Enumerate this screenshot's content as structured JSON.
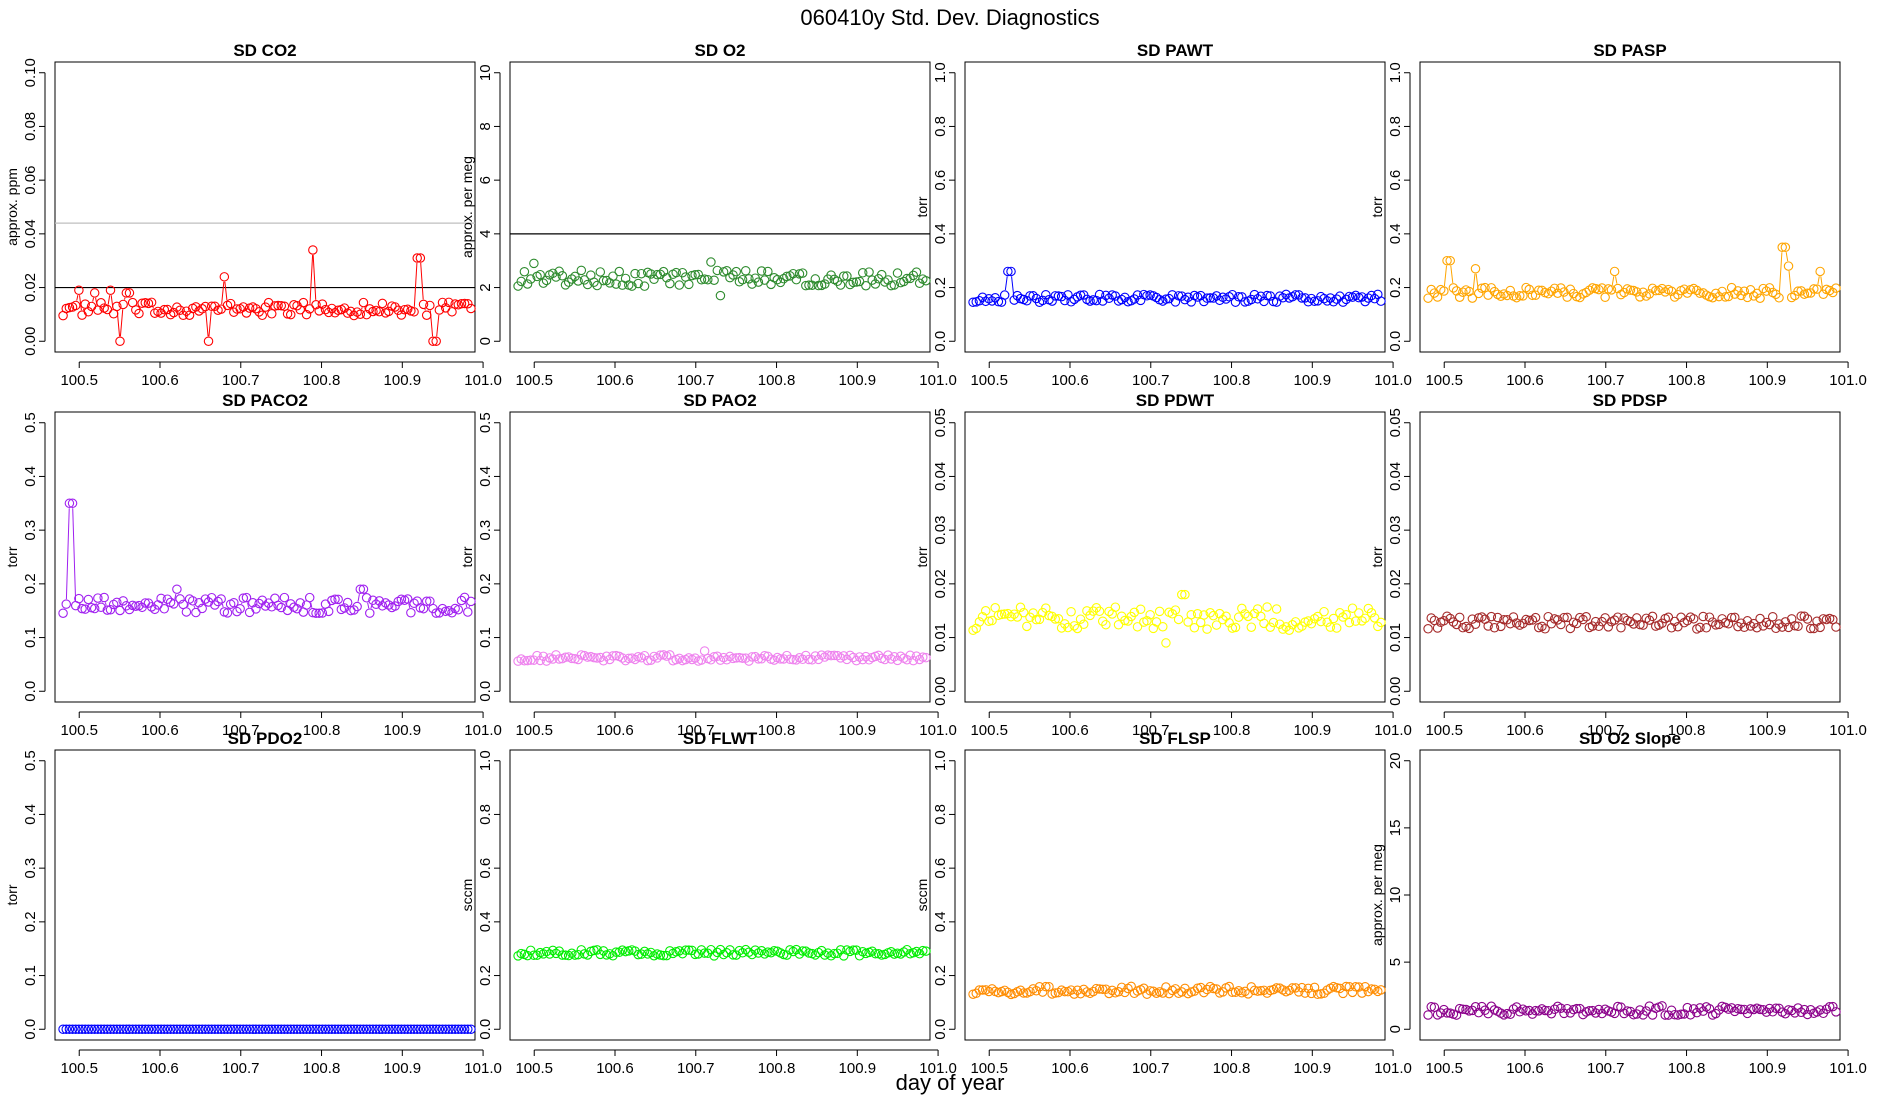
{
  "title": "060410y   Std. Dev. Diagnostics",
  "xlabel": "day of year",
  "chart_data": [
    {
      "type": "scatter",
      "title": "SD CO2",
      "ylabel": "approx. ppm",
      "color": "#ff0000",
      "ylim": [
        0,
        0.1
      ],
      "yticks": [
        "0.00",
        "0.02",
        "0.04",
        "0.06",
        "0.08",
        "0.10"
      ],
      "xlim": [
        100.47,
        100.99
      ],
      "xticks": [
        "100.5",
        "100.6",
        "100.7",
        "100.8",
        "100.9",
        "101.0"
      ],
      "hlines": [
        {
          "y": 0.02,
          "color": "#000000"
        },
        {
          "y": 0.044,
          "color": "#bfbfbf"
        }
      ],
      "base": 0.012,
      "noise": 0.0025,
      "spikes": [
        [
          100.5,
          0.019
        ],
        [
          100.52,
          0.018
        ],
        [
          100.54,
          0.019
        ],
        [
          100.55,
          0.0
        ],
        [
          100.56,
          0.018
        ],
        [
          100.66,
          0.0
        ],
        [
          100.68,
          0.024
        ],
        [
          100.79,
          0.034
        ],
        [
          100.92,
          0.031
        ],
        [
          100.94,
          0.0
        ]
      ],
      "connected": true
    },
    {
      "type": "scatter",
      "title": "SD O2",
      "ylabel": "approx. per meg",
      "color": "#2e8b2e",
      "ylim": [
        0,
        10
      ],
      "yticks": [
        "0",
        "2",
        "4",
        "6",
        "8",
        "10"
      ],
      "xlim": [
        100.47,
        100.99
      ],
      "xticks": [
        "100.5",
        "100.6",
        "100.7",
        "100.8",
        "100.9",
        "101.0"
      ],
      "hlines": [
        {
          "y": 4,
          "color": "#000000"
        }
      ],
      "base": 2.35,
      "noise": 0.3,
      "spikes": [
        [
          100.5,
          2.9
        ],
        [
          100.72,
          2.95
        ],
        [
          100.73,
          1.7
        ]
      ],
      "connected": false
    },
    {
      "type": "scatter",
      "title": "SD PAWT",
      "ylabel": "torr",
      "color": "#0000ff",
      "ylim": [
        0,
        1.0
      ],
      "yticks": [
        "0.0",
        "0.2",
        "0.4",
        "0.6",
        "0.8",
        "1.0"
      ],
      "xlim": [
        100.47,
        100.99
      ],
      "xticks": [
        "100.5",
        "100.6",
        "100.7",
        "100.8",
        "100.9",
        "101.0"
      ],
      "hlines": [],
      "base": 0.16,
      "noise": 0.015,
      "spikes": [
        [
          100.525,
          0.26
        ]
      ],
      "connected": true
    },
    {
      "type": "scatter",
      "title": "SD PASP",
      "ylabel": "torr",
      "color": "#ffa500",
      "ylim": [
        0,
        1.0
      ],
      "yticks": [
        "0.0",
        "0.2",
        "0.4",
        "0.6",
        "0.8",
        "1.0"
      ],
      "xlim": [
        100.47,
        100.99
      ],
      "xticks": [
        "100.5",
        "100.6",
        "100.7",
        "100.8",
        "100.9",
        "101.0"
      ],
      "hlines": [],
      "base": 0.18,
      "noise": 0.02,
      "spikes": [
        [
          100.505,
          0.3
        ],
        [
          100.54,
          0.27
        ],
        [
          100.71,
          0.26
        ],
        [
          100.92,
          0.35
        ],
        [
          100.925,
          0.28
        ],
        [
          100.965,
          0.26
        ]
      ],
      "connected": true
    },
    {
      "type": "scatter",
      "title": "SD PACO2",
      "ylabel": "torr",
      "color": "#a020f0",
      "ylim": [
        0,
        0.5
      ],
      "yticks": [
        "0.0",
        "0.1",
        "0.2",
        "0.3",
        "0.4",
        "0.5"
      ],
      "xlim": [
        100.47,
        100.99
      ],
      "xticks": [
        "100.5",
        "100.6",
        "100.7",
        "100.8",
        "100.9",
        "101.0"
      ],
      "hlines": [],
      "base": 0.16,
      "noise": 0.015,
      "spikes": [
        [
          100.49,
          0.35
        ],
        [
          100.62,
          0.19
        ],
        [
          100.85,
          0.19
        ]
      ],
      "connected": true
    },
    {
      "type": "scatter",
      "title": "SD PAO2",
      "ylabel": "torr",
      "color": "#ee82ee",
      "ylim": [
        0,
        0.5
      ],
      "yticks": [
        "0.0",
        "0.1",
        "0.2",
        "0.3",
        "0.4",
        "0.5"
      ],
      "xlim": [
        100.47,
        100.99
      ],
      "xticks": [
        "100.5",
        "100.6",
        "100.7",
        "100.8",
        "100.9",
        "101.0"
      ],
      "hlines": [],
      "base": 0.062,
      "noise": 0.006,
      "spikes": [
        [
          100.71,
          0.075
        ]
      ],
      "connected": false
    },
    {
      "type": "scatter",
      "title": "SD PDWT",
      "ylabel": "torr",
      "color": "#ffff00",
      "ylim": [
        0,
        0.05
      ],
      "yticks": [
        "0.00",
        "0.01",
        "0.02",
        "0.03",
        "0.04",
        "0.05"
      ],
      "xlim": [
        100.47,
        100.99
      ],
      "xticks": [
        "100.5",
        "100.6",
        "100.7",
        "100.8",
        "100.9",
        "101.0"
      ],
      "hlines": [],
      "base": 0.0135,
      "noise": 0.0022,
      "spikes": [
        [
          100.74,
          0.018
        ],
        [
          100.72,
          0.009
        ]
      ],
      "connected": false
    },
    {
      "type": "scatter",
      "title": "SD PDSP",
      "ylabel": "torr",
      "color": "#a52a2a",
      "ylim": [
        0,
        0.05
      ],
      "yticks": [
        "0.00",
        "0.01",
        "0.02",
        "0.03",
        "0.04",
        "0.05"
      ],
      "xlim": [
        100.47,
        100.99
      ],
      "xticks": [
        "100.5",
        "100.6",
        "100.7",
        "100.8",
        "100.9",
        "101.0"
      ],
      "hlines": [],
      "base": 0.0128,
      "noise": 0.0012,
      "spikes": [],
      "connected": false
    },
    {
      "type": "scatter",
      "title": "SD PDO2",
      "ylabel": "torr",
      "color": "#0000ff",
      "ylim": [
        0,
        0.5
      ],
      "yticks": [
        "0.0",
        "0.1",
        "0.2",
        "0.3",
        "0.4",
        "0.5"
      ],
      "xlim": [
        100.47,
        100.99
      ],
      "xticks": [
        "100.5",
        "100.6",
        "100.7",
        "100.8",
        "100.9",
        "101.0"
      ],
      "hlines": [],
      "base": 0.0,
      "noise": 0.0,
      "spikes": [],
      "connected": false
    },
    {
      "type": "scatter",
      "title": "SD FLWT",
      "ylabel": "sccm",
      "color": "#00ee00",
      "ylim": [
        0,
        1.0
      ],
      "yticks": [
        "0.0",
        "0.2",
        "0.4",
        "0.6",
        "0.8",
        "1.0"
      ],
      "xlim": [
        100.47,
        100.99
      ],
      "xticks": [
        "100.5",
        "100.6",
        "100.7",
        "100.8",
        "100.9",
        "101.0"
      ],
      "hlines": [],
      "base": 0.285,
      "noise": 0.012,
      "spikes": [],
      "connected": false
    },
    {
      "type": "scatter",
      "title": "SD FLSP",
      "ylabel": "sccm",
      "color": "#ff8c00",
      "ylim": [
        0,
        1.0
      ],
      "yticks": [
        "0.0",
        "0.2",
        "0.4",
        "0.6",
        "0.8",
        "1.0"
      ],
      "xlim": [
        100.47,
        100.99
      ],
      "xticks": [
        "100.5",
        "100.6",
        "100.7",
        "100.8",
        "100.9",
        "101.0"
      ],
      "hlines": [],
      "base": 0.145,
      "noise": 0.015,
      "spikes": [],
      "connected": false
    },
    {
      "type": "scatter",
      "title": "SD O2 Slope",
      "ylabel": "approx. per meg",
      "color": "#8b008b",
      "ylim": [
        0,
        20
      ],
      "yticks": [
        "0",
        "5",
        "10",
        "15",
        "20"
      ],
      "xlim": [
        100.47,
        100.99
      ],
      "xticks": [
        "100.5",
        "100.6",
        "100.7",
        "100.8",
        "100.9",
        "101.0"
      ],
      "hlines": [],
      "base": 1.4,
      "noise": 0.35,
      "spikes": [],
      "connected": false
    }
  ]
}
